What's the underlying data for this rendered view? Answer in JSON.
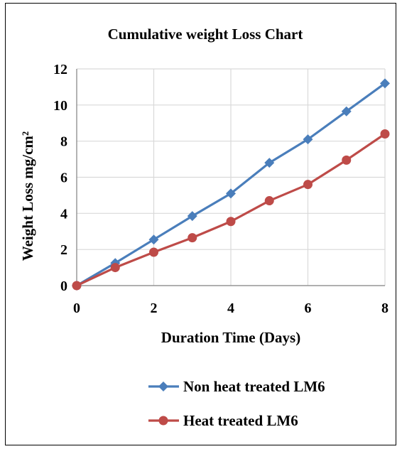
{
  "chart_data": {
    "type": "line",
    "title": "Cumulative weight Loss Chart",
    "xlabel": "Duration Time (Days)",
    "ylabel": "Weight Loss mg/cm²",
    "xlim": [
      0,
      8
    ],
    "ylim": [
      0,
      12
    ],
    "x_ticks": [
      "0",
      "2",
      "4",
      "6",
      "8"
    ],
    "y_ticks": [
      "0",
      "2",
      "4",
      "6",
      "8",
      "10",
      "12"
    ],
    "grid": true,
    "legend_position": "bottom",
    "x": [
      0,
      1,
      2,
      3,
      4,
      5,
      6,
      7,
      8
    ],
    "series": [
      {
        "name": "Non heat treated LM6",
        "values": [
          0,
          1.25,
          2.55,
          3.85,
          5.1,
          6.8,
          8.1,
          9.65,
          11.2
        ],
        "color": "#4a7ebb",
        "marker": "diamond"
      },
      {
        "name": "Heat treated LM6",
        "values": [
          0,
          1.0,
          1.85,
          2.65,
          3.55,
          4.7,
          5.6,
          6.95,
          8.4
        ],
        "color": "#be4b48",
        "marker": "circle"
      }
    ]
  }
}
